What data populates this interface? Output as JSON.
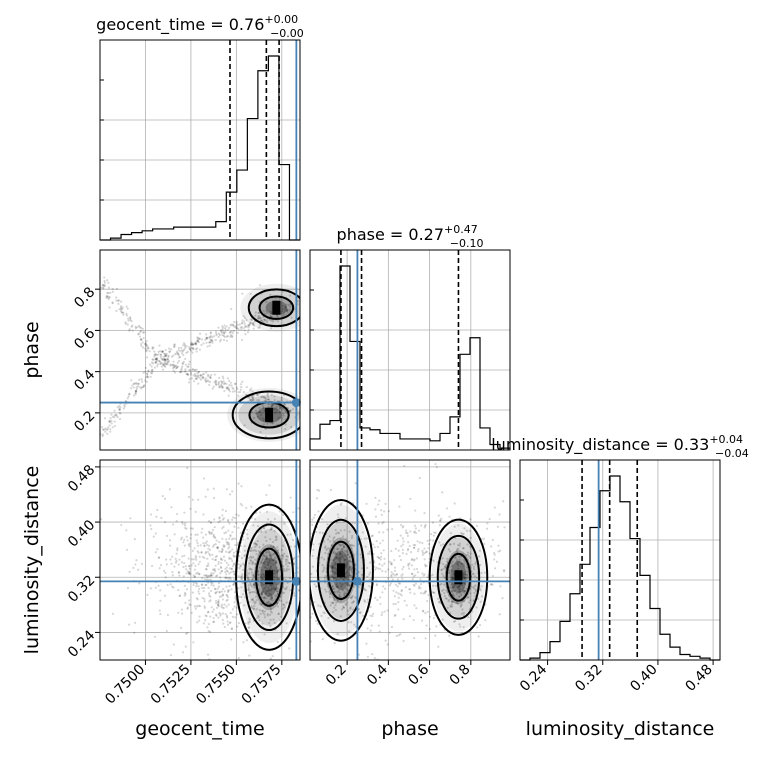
{
  "chart_data": {
    "type": "corner",
    "truth_color": "#4682b4",
    "parameters": [
      {
        "name": "geocent_time",
        "title_main": "geocent_time = 0.76",
        "title_sup": "+0.00",
        "title_sub": "−0.00",
        "axis_label": "geocent_time",
        "range": [
          0.7475,
          0.7585
        ],
        "ticks": [
          0.75,
          0.7525,
          0.755,
          0.7575
        ],
        "tick_labels": [
          "0.7500",
          "0.7525",
          "0.7550",
          "0.7575"
        ],
        "quantiles": [
          0.75465,
          0.75665,
          0.75735
        ],
        "truth": 0.7583,
        "hist_values": [
          0.0,
          0.01,
          0.03,
          0.04,
          0.05,
          0.06,
          0.06,
          0.07,
          0.07,
          0.07,
          0.07,
          0.1,
          0.26,
          0.38,
          0.66,
          0.92,
          1.0,
          0.41,
          0.0
        ]
      },
      {
        "name": "phase",
        "title_main": "phase = 0.27",
        "title_sup": "+0.47",
        "title_sub": "−0.10",
        "axis_label": "phase",
        "range": [
          0.02,
          0.99
        ],
        "ticks": [
          0.2,
          0.4,
          0.6,
          0.8
        ],
        "tick_labels": [
          "0.2",
          "0.4",
          "0.6",
          "0.8"
        ],
        "quantiles": [
          0.17,
          0.27,
          0.74
        ],
        "truth": 0.25,
        "hist_values": [
          0.06,
          0.14,
          0.16,
          1.0,
          0.59,
          0.12,
          0.11,
          0.09,
          0.09,
          0.06,
          0.06,
          0.06,
          0.05,
          0.09,
          0.18,
          0.52,
          0.61,
          0.12,
          0.03,
          0.01
        ]
      },
      {
        "name": "luminosity_distance",
        "title_main": "luminosity_distance = 0.33",
        "title_sup": "+0.04",
        "title_sub": "−0.04",
        "axis_label": "luminosity_distance",
        "range": [
          0.2,
          0.49
        ],
        "ticks": [
          0.24,
          0.32,
          0.4,
          0.48
        ],
        "tick_labels": [
          "0.24",
          "0.32",
          "0.40",
          "0.48"
        ],
        "quantiles": [
          0.29,
          0.33,
          0.37
        ],
        "truth": 0.314,
        "hist_values": [
          0.0,
          0.01,
          0.04,
          0.1,
          0.21,
          0.36,
          0.52,
          0.72,
          0.92,
          1.0,
          0.86,
          0.66,
          0.46,
          0.28,
          0.14,
          0.07,
          0.03,
          0.02,
          0.01,
          0.0
        ]
      }
    ],
    "grid": true,
    "contour_levels": 3
  }
}
